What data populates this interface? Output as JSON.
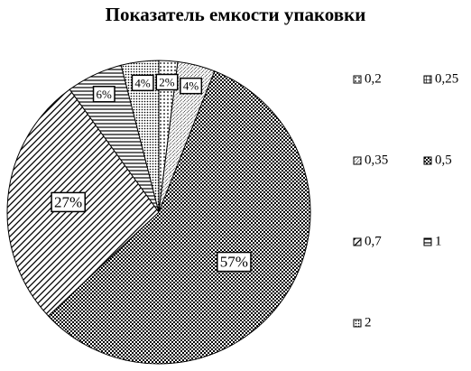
{
  "chart_data": {
    "type": "pie",
    "title": "Показатель емкости упаковки",
    "categories": [
      "0,2",
      "0,25",
      "0,35",
      "0,5",
      "0,7",
      "1",
      "2"
    ],
    "values": [
      2,
      0,
      4,
      57,
      27,
      6,
      4
    ],
    "value_labels": [
      "2%",
      null,
      "4%",
      "57%",
      "27%",
      "6%",
      "4%"
    ],
    "patterns": [
      "dots",
      "grid",
      "diag-dots",
      "check",
      "diag",
      "hlines",
      "fine-dots"
    ],
    "color": "#000000",
    "legend": "right"
  }
}
